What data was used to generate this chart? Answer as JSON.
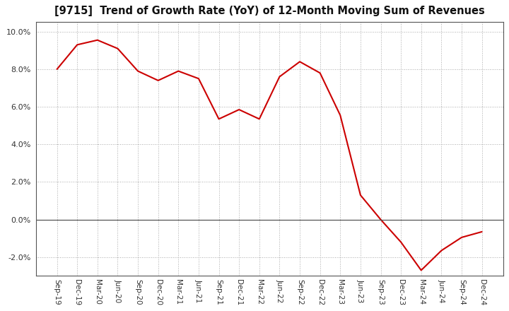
{
  "title": "[9715]  Trend of Growth Rate (YoY) of 12-Month Moving Sum of Revenues",
  "line_color": "#CC0000",
  "background_color": "#FFFFFF",
  "grid_color": "#AAAAAA",
  "ylim": [
    -3.0,
    10.5
  ],
  "yticks": [
    -2.0,
    0.0,
    2.0,
    4.0,
    6.0,
    8.0,
    10.0
  ],
  "x_labels": [
    "Sep-19",
    "Dec-19",
    "Mar-20",
    "Jun-20",
    "Sep-20",
    "Dec-20",
    "Mar-21",
    "Jun-21",
    "Sep-21",
    "Dec-21",
    "Mar-22",
    "Jun-22",
    "Sep-22",
    "Dec-22",
    "Mar-23",
    "Jun-23",
    "Sep-23",
    "Dec-23",
    "Mar-24",
    "Jun-24",
    "Sep-24",
    "Dec-24"
  ],
  "values": [
    8.0,
    9.3,
    9.55,
    9.1,
    7.9,
    7.4,
    7.9,
    7.5,
    5.35,
    5.85,
    5.35,
    7.6,
    8.4,
    7.8,
    5.55,
    1.3,
    0.0,
    -1.2,
    -2.7,
    -1.65,
    -0.95,
    -0.65
  ]
}
